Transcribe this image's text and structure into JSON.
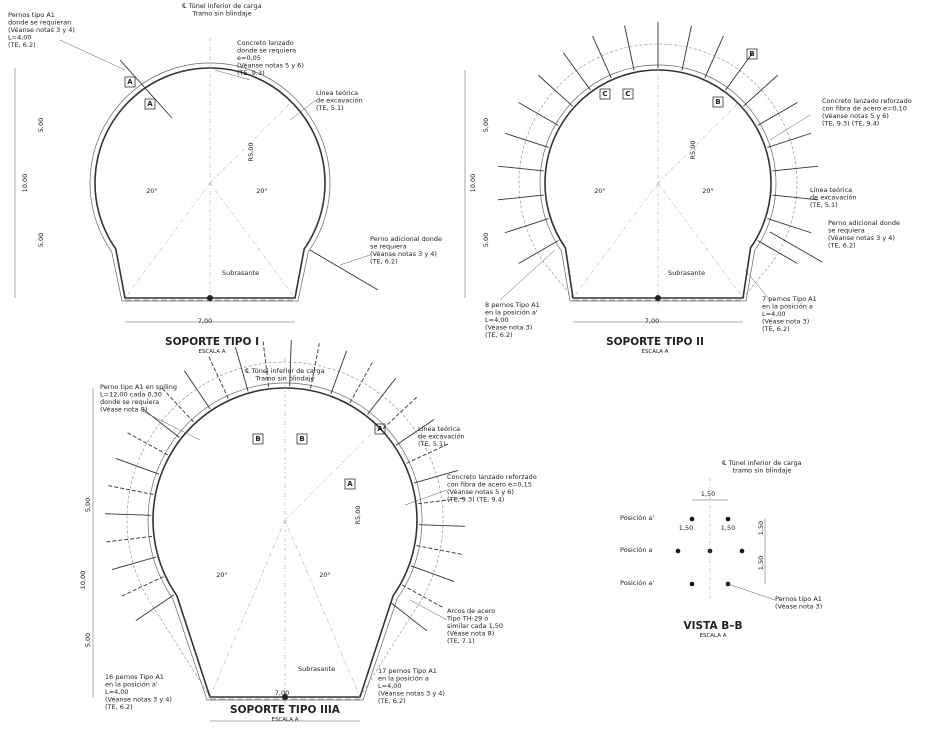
{
  "panels": [
    {
      "title": "SOPORTE TIPO I",
      "scale": "ESCALA A",
      "notes": [
        [
          "Pernos tipo A1",
          "donde se requieran",
          "(Véanse notas 3 y 4)",
          "L=4,00",
          "(TE, 6.2)"
        ],
        [
          "℄ Túnel inferior de carga",
          "Tramo sin blindaje"
        ],
        [
          "Concreto lanzado",
          "donde se requiera",
          "e=0,05",
          "(Véanse notas 5 y 6)",
          "(TE, 9.3)"
        ],
        [
          "Línea teórica",
          "de excavación",
          "(TE, 5.1)"
        ],
        [
          "Perno adicional donde",
          "se requiera",
          "(Véanse notas 3 y 4)",
          "(TE, 6.2)"
        ],
        [
          "Subrasante"
        ]
      ],
      "dims": [
        "5,00",
        "10,00",
        "5,00",
        "R5,00",
        "20°",
        "20°",
        "7,00"
      ],
      "marks": [
        "A",
        "A"
      ]
    },
    {
      "title": "SOPORTE TIPO II",
      "scale": "ESCALA A",
      "notes": [
        [
          "Concreto lanzado reforzado",
          "con fibra de acero e=0,10",
          "(Véanse notas 5 y 6)",
          "(TE, 9.3)  (TE, 9.4)"
        ],
        [
          "Línea teórica",
          "de excavación",
          "(TE, 5.1)"
        ],
        [
          "Perno adicional donde",
          "se requiera",
          "(Véanse notas 3 y 4)",
          "(TE, 6.2)"
        ],
        [
          "8 pernos Tipo A1",
          "en la posición a'",
          "L=4,00",
          "(Véase nota 3)",
          "(TE, 6.2)"
        ],
        [
          "7 pernos Tipo A1",
          "en la posición a",
          "L=4,00",
          "(Véase nota 3)",
          "(TE, 6.2)"
        ],
        [
          "Subrasante"
        ]
      ],
      "dims": [
        "5,00",
        "10,00",
        "5,00",
        "R5,00",
        "20°",
        "20°",
        "7,00"
      ],
      "marks": [
        "C",
        "C",
        "B",
        "B"
      ]
    },
    {
      "title": "SOPORTE TIPO IIIA",
      "scale": "ESCALA A",
      "notes": [
        [
          "℄ Túnel inferior de carga",
          "Tramo sin blindaje"
        ],
        [
          "Perno tipo A1 en spiling",
          "L=12,00 cada 0,30",
          "donde se requiera",
          "(Véase nota 9)"
        ],
        [
          "Línea teórica",
          "de excavación",
          "(TE, 5.1)"
        ],
        [
          "Concreto lanzado reforzado",
          "con fibra de acero e=0,15",
          "(Véanse notas 5 y 6)",
          "(TE, 9.3)  (TE, 9.4)"
        ],
        [
          "Arcos de acero",
          "Tipo TH-29 ó",
          "similar cada 1,50",
          "(Véase nota 8)",
          "(TE, 7.1)"
        ],
        [
          "16 pernos Tipo A1",
          "en la posición a'",
          "L=4,00",
          "(Véanse notas 3 y 4)",
          "(TE, 6.2)"
        ],
        [
          "17 pernos Tipo A1",
          "en la posición a",
          "L=4,00",
          "(Véanse notas 3 y 4)",
          "(TE, 6.2)"
        ],
        [
          "Subrasante"
        ]
      ],
      "dims": [
        "5,00",
        "10,00",
        "5,00",
        "R5,00",
        "20°",
        "20°",
        "7,00"
      ],
      "marks": [
        "B",
        "B",
        "A",
        "A"
      ]
    },
    {
      "title": "VISTA B–B",
      "scale": "ESCALA A",
      "notes": [
        [
          "℄ Túnel inferior de carga",
          "tramo sin blindaje"
        ],
        [
          "Posición a'"
        ],
        [
          "Posición a"
        ],
        [
          "Posición a'"
        ],
        [
          "Pernos tipo A1",
          "(Véase nota 3)"
        ]
      ],
      "dims": [
        "1,50",
        "1,50",
        "1,50",
        "1,50",
        "1,50"
      ]
    }
  ]
}
